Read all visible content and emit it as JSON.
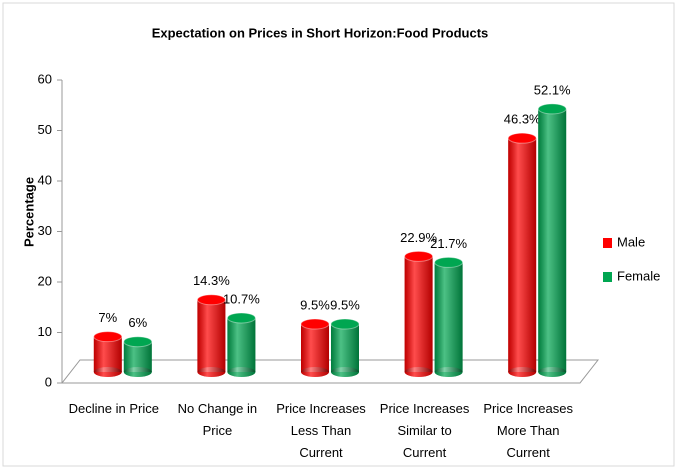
{
  "chart_data": {
    "type": "bar",
    "title": "Expectation on Prices in Short Horizon:Food Products",
    "y_label": "Percentage",
    "categories": [
      "Decline in Price",
      "No Change in Price",
      "Price Increases Less Than Current",
      "Price Increases Similar to Current",
      "Price Increases More Than Current"
    ],
    "series": [
      {
        "name": "Male",
        "color": "#ff0000",
        "values": [
          7,
          14.3,
          9.5,
          22.9,
          46.3
        ],
        "value_labels": [
          "7%",
          "14.3%",
          "9.5%",
          "22.9%",
          "46.3%"
        ]
      },
      {
        "name": "Female",
        "color": "#00a651",
        "values": [
          6,
          10.7,
          9.5,
          21.7,
          52.1
        ],
        "value_labels": [
          "6%",
          "10.7%",
          "9.5%",
          "21.7%",
          "52.1%"
        ]
      }
    ],
    "ylim": [
      0,
      60
    ],
    "yticks": [
      0,
      10,
      20,
      30,
      40,
      50,
      60
    ],
    "legend": "right"
  }
}
